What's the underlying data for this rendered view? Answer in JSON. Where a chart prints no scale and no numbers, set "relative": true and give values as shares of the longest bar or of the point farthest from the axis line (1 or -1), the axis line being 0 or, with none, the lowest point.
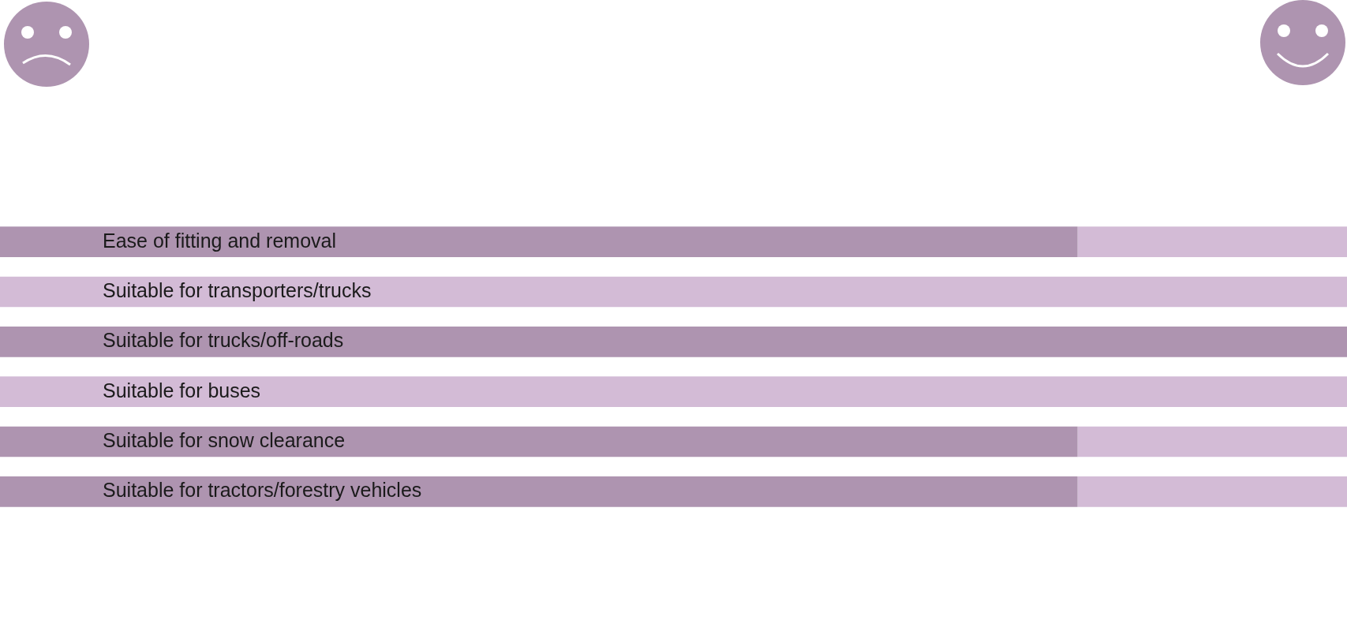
{
  "chart_data": {
    "type": "bar",
    "orientation": "horizontal",
    "stacked": true,
    "relative": true,
    "legend": false,
    "categories": [
      "Ease of fitting and removal",
      "Suitable for transporters/trucks",
      "Suitable for trucks/off-roads",
      "Suitable for buses",
      "Suitable for snow clearance",
      "Suitable for tractors/forestry vehicles"
    ],
    "series": [
      {
        "color": "#ae94b0",
        "values": [
          0.8,
          0,
          1,
          0,
          0.8,
          0.8
        ]
      },
      {
        "color": "#d3bbd6",
        "values": [
          0.2,
          1,
          0,
          1,
          0.2,
          0.2
        ]
      }
    ]
  }
}
